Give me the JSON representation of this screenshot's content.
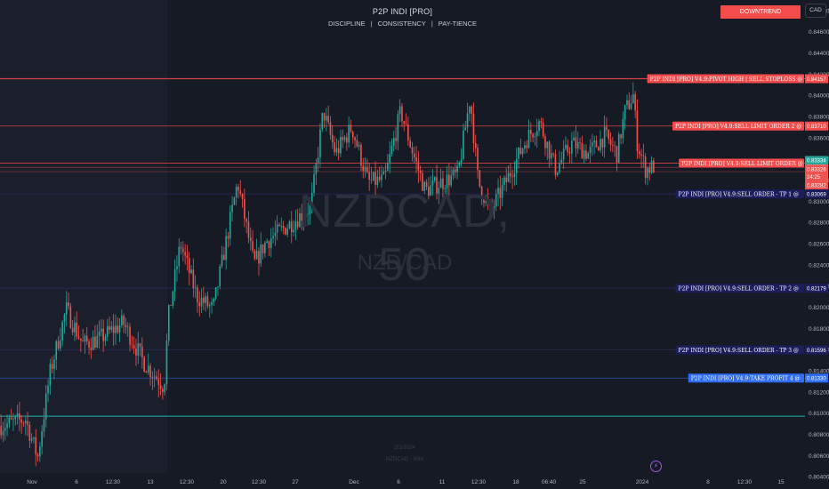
{
  "header": {
    "title": "P2P INDI [PRO]",
    "tagline": [
      "DISCIPLINE",
      "CONSISTENCY",
      "PAY-TIENCE"
    ]
  },
  "trend_label": "DOWNTREND",
  "currency": "CAD",
  "watermark": {
    "symbol": "NZDCAD, 50",
    "pair": "NZD/CAD",
    "foot_line1": "2/1/2024",
    "foot_line2": "NZDCAD · 50m"
  },
  "flash_icon": "lightning-icon",
  "colors": {
    "background": "#161a25",
    "up_candle": "#26a69a",
    "down_candle": "#ef5350",
    "sell_label": "#f44b4b",
    "tp_label": "#1c1d5c",
    "take_profit_label": "#2f6df5",
    "support_line": "#19b4a8"
  },
  "chart_data": {
    "type": "candlestick",
    "symbol": "NZDCAD",
    "timeframe": "50",
    "ylim": [
      0.803,
      0.849
    ],
    "y_ticks": [
      "0.84800",
      "0.84600",
      "0.84400",
      "0.84200",
      "0.84000",
      "0.83800",
      "0.83600",
      "0.83400",
      "0.83200",
      "0.83000",
      "0.82800",
      "0.82600",
      "0.82400",
      "0.82200",
      "0.82000",
      "0.81800",
      "0.81600",
      "0.81400",
      "0.81200",
      "0.81000",
      "0.80800",
      "0.80600",
      "0.80400"
    ],
    "x_labels": [
      "Nov",
      "6",
      "12:30",
      "13",
      "12:30",
      "20",
      "12:30",
      "27",
      "Dec",
      "6",
      "11",
      "12:30",
      "18",
      "06:40",
      "25",
      "2024",
      "8",
      "12:30",
      "15"
    ],
    "price_path": [
      [
        0,
        0.8088
      ],
      [
        0.03,
        0.8094
      ],
      [
        0.045,
        0.8058
      ],
      [
        0.06,
        0.8138
      ],
      [
        0.08,
        0.8198
      ],
      [
        0.1,
        0.8165
      ],
      [
        0.12,
        0.817
      ],
      [
        0.15,
        0.8185
      ],
      [
        0.175,
        0.8148
      ],
      [
        0.2,
        0.8125
      ],
      [
        0.205,
        0.819
      ],
      [
        0.22,
        0.826
      ],
      [
        0.24,
        0.821
      ],
      [
        0.26,
        0.8198
      ],
      [
        0.29,
        0.8318
      ],
      [
        0.31,
        0.824
      ],
      [
        0.325,
        0.8262
      ],
      [
        0.36,
        0.8282
      ],
      [
        0.38,
        0.8295
      ],
      [
        0.395,
        0.8385
      ],
      [
        0.41,
        0.8345
      ],
      [
        0.43,
        0.837
      ],
      [
        0.45,
        0.8318
      ],
      [
        0.47,
        0.832
      ],
      [
        0.49,
        0.8385
      ],
      [
        0.505,
        0.8345
      ],
      [
        0.52,
        0.831
      ],
      [
        0.54,
        0.8318
      ],
      [
        0.56,
        0.8325
      ],
      [
        0.575,
        0.8398
      ],
      [
        0.585,
        0.8318
      ],
      [
        0.6,
        0.829
      ],
      [
        0.62,
        0.832
      ],
      [
        0.645,
        0.836
      ],
      [
        0.66,
        0.8375
      ],
      [
        0.68,
        0.833
      ],
      [
        0.7,
        0.8355
      ],
      [
        0.72,
        0.8345
      ],
      [
        0.74,
        0.8362
      ],
      [
        0.755,
        0.8345
      ],
      [
        0.765,
        0.8385
      ],
      [
        0.775,
        0.84
      ],
      [
        0.78,
        0.8355
      ],
      [
        0.79,
        0.833
      ],
      [
        0.8,
        0.8333
      ]
    ],
    "last_price": 0.83334,
    "levels": [
      {
        "label": "P2P INDI [PRO] V4.9:PIVOT HIGH | SELL STOPLOSS @",
        "price": 0.84157,
        "price_text": "0.84157",
        "kind": "sell"
      },
      {
        "label": "P2P INDI [PRO] V4.9:SELL LIMIT ORDER 2 @",
        "price": 0.8371,
        "price_text": "0.83710",
        "kind": "sell"
      },
      {
        "label": "P2P INDI [PRO] V4.9:SELL LIMIT ORDER @",
        "price": 0.8336,
        "price_text": "0.83360",
        "kind": "sell"
      },
      {
        "label": "P2P INDI [PRO] V4.9:SELL ORDER - TP 1 @",
        "price": 0.83069,
        "price_text": "0.83069",
        "kind": "tp"
      },
      {
        "label": "P2P INDI [PRO] V4.9:SELL ORDER - TP 2 @",
        "price": 0.82179,
        "price_text": "0.82179",
        "kind": "tp"
      },
      {
        "label": "P2P INDI [PRO] V4.9:SELL ORDER - TP 3 @",
        "price": 0.81596,
        "price_text": "0.81596",
        "kind": "tp"
      },
      {
        "label": "P2P INDI [PRO] V4.9:TAKE PROFIT 4 @",
        "price": 0.8133,
        "price_text": "0.81330",
        "kind": "tp4"
      }
    ],
    "price_tags": [
      {
        "text": "0.83334",
        "kind": "current"
      },
      {
        "text": "0.83326",
        "kind": "sell"
      },
      {
        "text": "24:25",
        "kind": "timer"
      },
      {
        "text": "0.83282",
        "kind": "sell"
      }
    ],
    "support_level": 0.8097
  }
}
